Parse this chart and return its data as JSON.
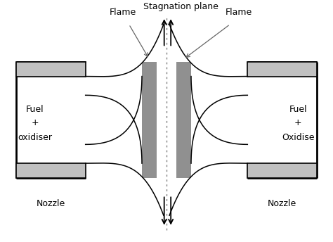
{
  "bg_color": "#ffffff",
  "nozzle_edge_color": "#000000",
  "flame_rect_color": "#909090",
  "nozzle_tip_color": "#c0c0c0",
  "title": "Stagnation plane",
  "left_label1": "Fuel",
  "left_label2": "+",
  "left_label3": "oxidiser",
  "right_label1": "Fuel",
  "right_label2": "+",
  "right_label3": "Oxidise",
  "bottom_left_label": "Nozzle",
  "bottom_right_label": "Nozzle",
  "flame_left_label": "Flame",
  "flame_right_label": "Flame",
  "xlim": [
    -5.5,
    5.5
  ],
  "ylim": [
    -4.2,
    4.0
  ]
}
